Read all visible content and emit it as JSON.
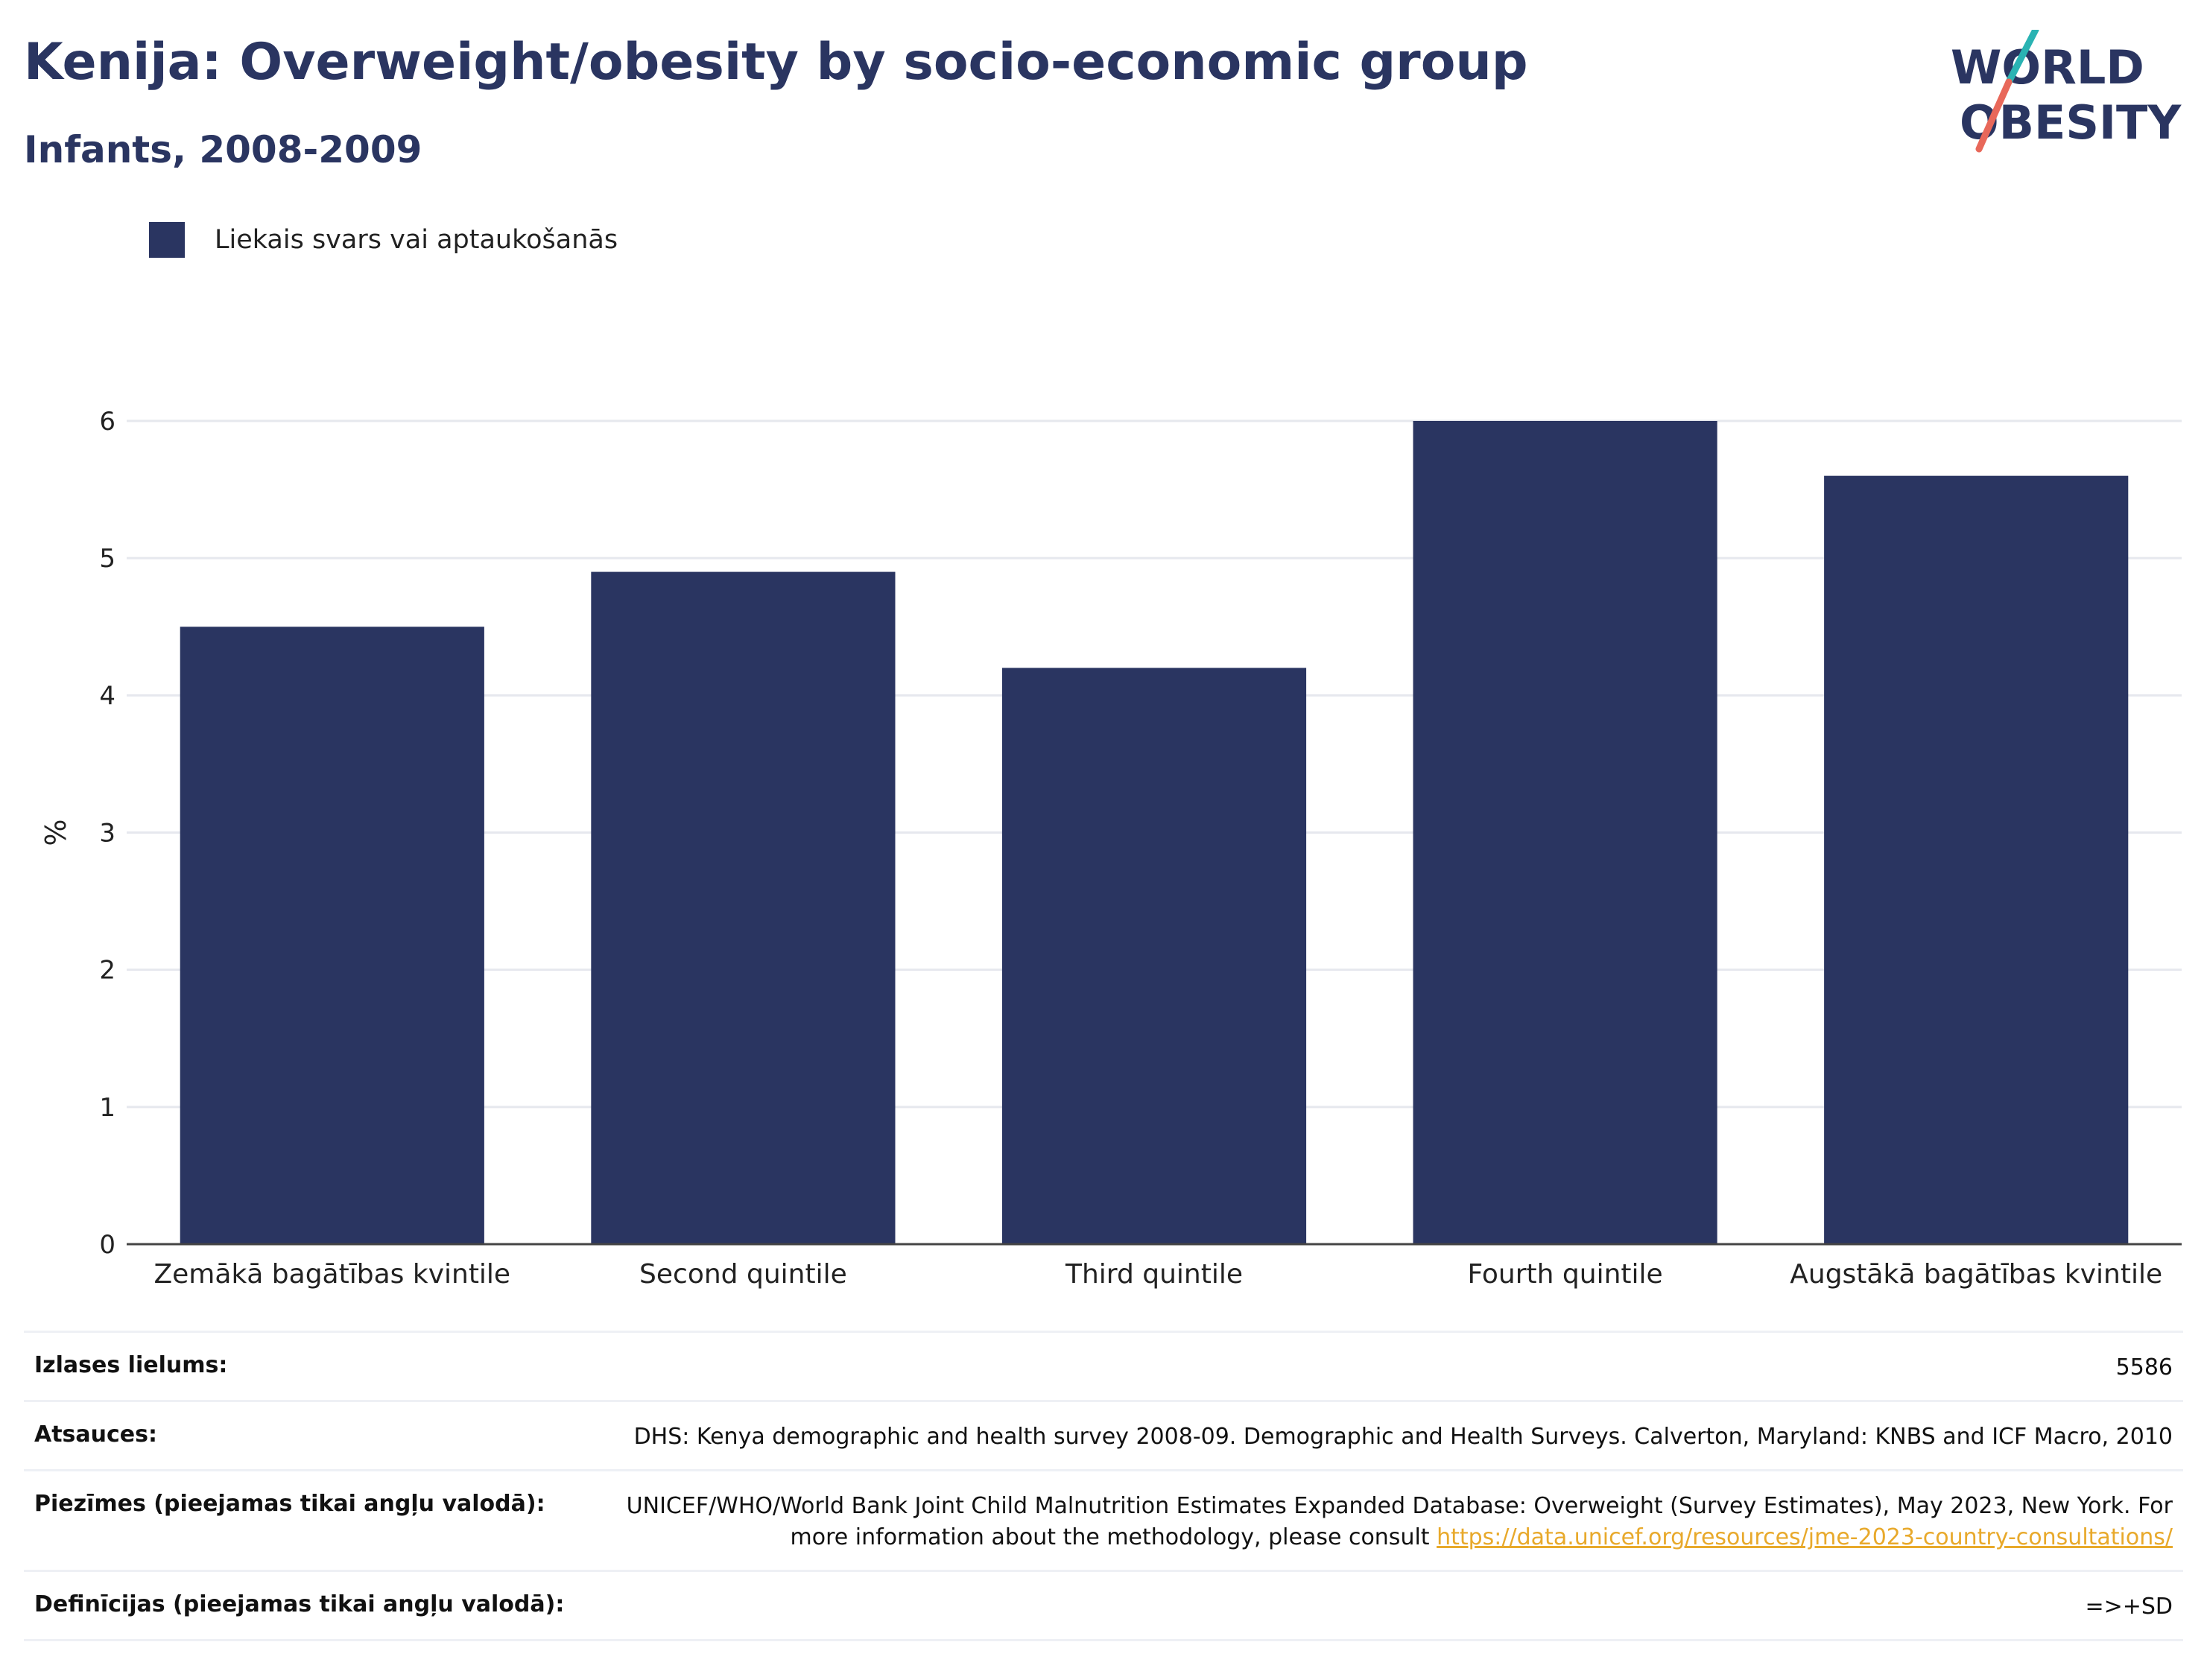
{
  "header": {
    "title": "Kenija: Overweight/obesity by socio-economic group",
    "subtitle": "Infants, 2008-2009"
  },
  "logo": {
    "line1": "WORLD",
    "line2": "OBESITY",
    "colors": {
      "text": "#2a3561",
      "slash_teal": "#2ab3b3",
      "slash_coral": "#e8685a"
    }
  },
  "chart_data": {
    "type": "bar",
    "title": "Kenija: Overweight/obesity by socio-economic group",
    "subtitle": "Infants, 2008-2009",
    "categories": [
      "Zemākā bagātības kvintile",
      "Second quintile",
      "Third quintile",
      "Fourth quintile",
      "Augstākā bagātības kvintile"
    ],
    "series": [
      {
        "name": "Liekais svars vai aptaukošanās",
        "values": [
          4.5,
          4.9,
          4.2,
          6.0,
          5.6
        ],
        "color": "#2a3561"
      }
    ],
    "xlabel": "",
    "ylabel": "%",
    "ylim": [
      0,
      6
    ],
    "yticks": [
      0,
      1,
      2,
      3,
      4,
      5,
      6
    ],
    "grid": true,
    "legend_position": "top-left"
  },
  "table": {
    "rows": [
      {
        "label": "Izlases lielums:",
        "value": "5586"
      },
      {
        "label": "Atsauces:",
        "value": "DHS: Kenya demographic and health survey 2008-09. Demographic and Health Surveys. Calverton, Maryland: KNBS and ICF Macro, 2010"
      },
      {
        "label": "Piezīmes (pieejamas tikai angļu valodā):",
        "value": "UNICEF/WHO/World Bank Joint Child Malnutrition Estimates Expanded Database: Overweight (Survey Estimates), May 2023, New York. For more information about the methodology, please consult ",
        "link": "https://data.unicef.org/resources/jme-2023-country-consultations/"
      },
      {
        "label": "Definīcijas (pieejamas tikai angļu valodā):",
        "value": "=>+SD"
      }
    ]
  }
}
